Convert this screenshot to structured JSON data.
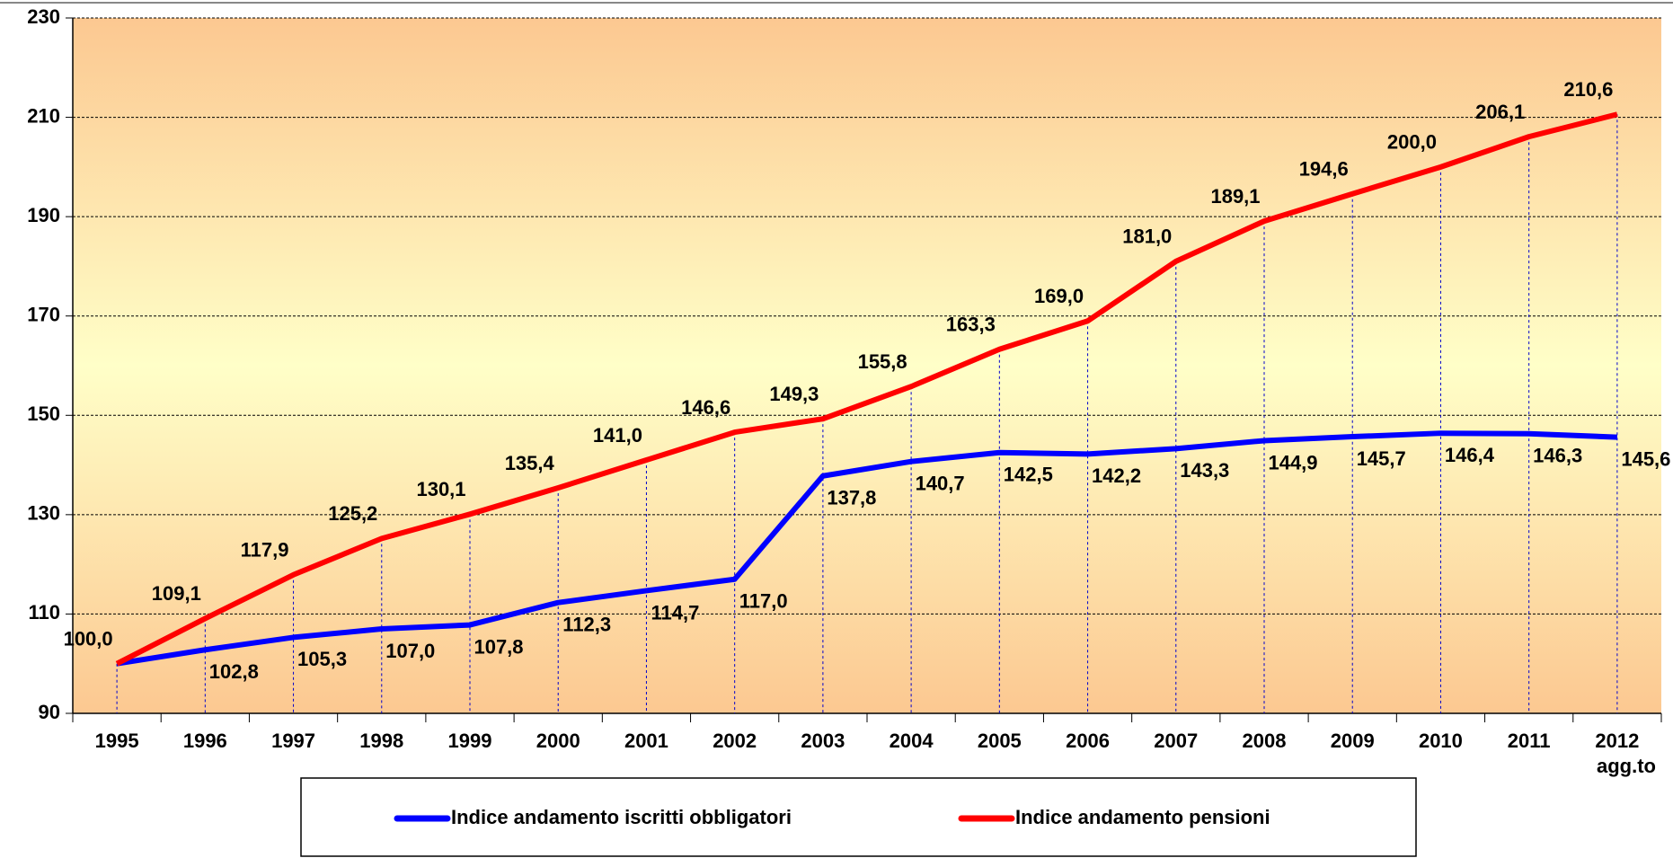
{
  "chart_data": {
    "type": "line",
    "categories": [
      "1995",
      "1996",
      "1997",
      "1998",
      "1999",
      "2000",
      "2001",
      "2002",
      "2003",
      "2004",
      "2005",
      "2006",
      "2007",
      "2008",
      "2009",
      "2010",
      "2011",
      "2012"
    ],
    "x_note": "agg.to",
    "series": [
      {
        "name": "Indice andamento iscritti obbligatori",
        "color": "#0000ff",
        "values": [
          100.0,
          102.8,
          105.3,
          107.0,
          107.8,
          112.3,
          114.7,
          117.0,
          137.8,
          140.7,
          142.5,
          142.2,
          143.3,
          144.9,
          145.7,
          146.4,
          146.3,
          145.6
        ],
        "value_labels": [
          null,
          "102,8",
          "105,3",
          "107,0",
          "107,8",
          "112,3",
          "114,7",
          "117,0",
          "137,8",
          "140,7",
          "142,5",
          "142,2",
          "143,3",
          "144,9",
          "145,7",
          "146,4",
          "146,3",
          "145,6"
        ]
      },
      {
        "name": "Indice andamento pensioni",
        "color": "#ff0000",
        "values": [
          100.0,
          109.1,
          117.9,
          125.2,
          130.1,
          135.4,
          141.0,
          146.6,
          149.3,
          155.8,
          163.3,
          169.0,
          181.0,
          189.1,
          194.6,
          200.0,
          206.1,
          210.6
        ],
        "value_labels": [
          "100,0",
          "109,1",
          "117,9",
          "125,2",
          "130,1",
          "135,4",
          "141,0",
          "146,6",
          "149,3",
          "155,8",
          "163,3",
          "169,0",
          "181,0",
          "189,1",
          "194,6",
          "200,0",
          "206,1",
          "210,6"
        ]
      }
    ],
    "ylim": [
      90,
      230
    ],
    "yticks": [
      90,
      110,
      130,
      150,
      170,
      190,
      210,
      230
    ],
    "grid": true,
    "legend": "bottom"
  }
}
